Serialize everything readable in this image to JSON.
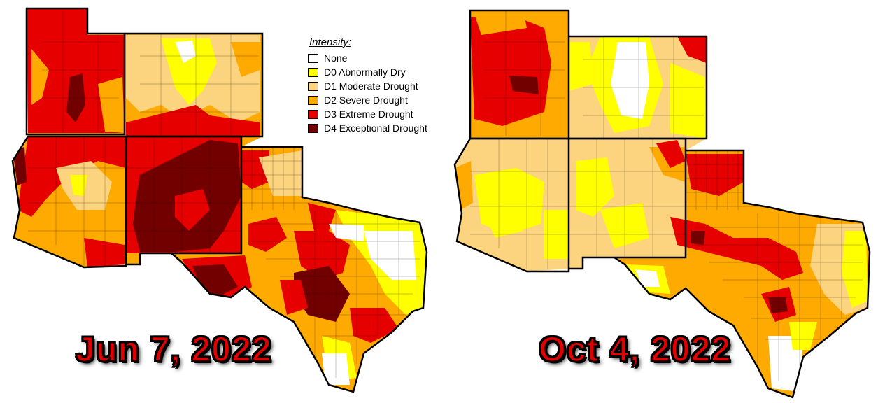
{
  "legend": {
    "title": "Intensity:",
    "items": [
      {
        "label": "None",
        "color": "#ffffff"
      },
      {
        "label": "D0 Abnormally Dry",
        "color": "#ffff00"
      },
      {
        "label": "D1 Moderate Drought",
        "color": "#fcd37f"
      },
      {
        "label": "D2 Severe Drought",
        "color": "#ffaa00"
      },
      {
        "label": "D3 Extreme Drought",
        "color": "#e60000"
      },
      {
        "label": "D4 Exceptional Drought",
        "color": "#730000"
      }
    ]
  },
  "maps": [
    {
      "date": "Jun 7, 2022",
      "states": [
        "Utah",
        "Colorado",
        "Arizona",
        "New Mexico",
        "Texas"
      ]
    },
    {
      "date": "Oct 4, 2022",
      "states": [
        "Utah",
        "Colorado",
        "Arizona",
        "New Mexico",
        "Texas"
      ]
    }
  ]
}
